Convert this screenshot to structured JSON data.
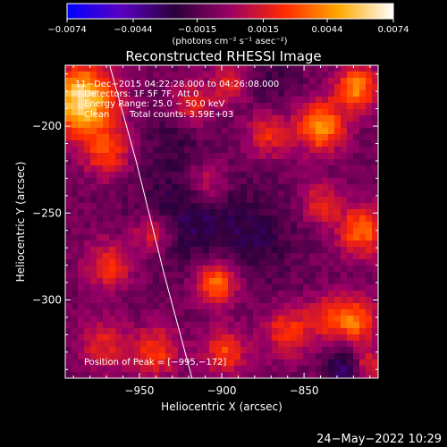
{
  "chart_data": {
    "type": "heatmap",
    "title": "Reconstructed RHESSI Image",
    "xlabel": "Heliocentric X (arcsec)",
    "ylabel": "Heliocentric Y (arcsec)",
    "xlim": [
      -995,
      -805
    ],
    "ylim": [
      -345,
      -165
    ],
    "xticks": [
      -950,
      -900,
      -850
    ],
    "xtick_labels": [
      "−950",
      "−900",
      "−850"
    ],
    "yticks": [
      -200,
      -250,
      -300
    ],
    "ytick_labels": [
      "−200",
      "−250",
      "−300"
    ],
    "colorbar": {
      "min": -0.0074,
      "max": 0.0074,
      "ticks": [
        -0.0074,
        -0.0044,
        -0.0015,
        0.0015,
        0.0044,
        0.0074
      ],
      "tick_labels": [
        "−0.0074",
        "−0.0044",
        "−0.0015",
        "0.0015",
        "0.0044",
        "0.0074"
      ],
      "unit_label": "(photons cm⁻² s⁻¹ asec⁻²)",
      "stops": [
        "#0000ff",
        "#5a00c0",
        "#2a003a",
        "#9a0066",
        "#ff2a00",
        "#ffaa00",
        "#ffffff"
      ]
    },
    "annotations": {
      "time": "11−Dec−2015 04:22:28.000 to 04:26:08.000",
      "detectors": "Detectors: 1F 5F 7F, Att 0",
      "energy": "Energy Range: 25.0 − 50.0 keV",
      "method": "Clean",
      "counts": "Total counts: 3.59E+03",
      "peak": "Position of Peak = [−995,−172]"
    },
    "limb": [
      {
        "x": -968,
        "y": -165
      },
      {
        "x": -952,
        "y": -220
      },
      {
        "x": -935,
        "y": -285
      },
      {
        "x": -918,
        "y": -345
      }
    ],
    "sources": [
      {
        "x": -985,
        "y": -185,
        "sigma": 14,
        "value": 0.0074
      },
      {
        "x": -970,
        "y": -215,
        "sigma": 10,
        "value": 0.0035
      },
      {
        "x": -968,
        "y": -280,
        "sigma": 10,
        "value": 0.0032
      },
      {
        "x": -972,
        "y": -325,
        "sigma": 10,
        "value": 0.0028
      },
      {
        "x": -942,
        "y": -262,
        "sigma": 8,
        "value": 0.003
      },
      {
        "x": -940,
        "y": -330,
        "sigma": 10,
        "value": 0.0034
      },
      {
        "x": -918,
        "y": -188,
        "sigma": 9,
        "value": 0.0028
      },
      {
        "x": -908,
        "y": -232,
        "sigma": 9,
        "value": 0.0026
      },
      {
        "x": -903,
        "y": -290,
        "sigma": 9,
        "value": 0.0048
      },
      {
        "x": -895,
        "y": -175,
        "sigma": 8,
        "value": 0.0026
      },
      {
        "x": -898,
        "y": -330,
        "sigma": 9,
        "value": 0.0036
      },
      {
        "x": -872,
        "y": -205,
        "sigma": 9,
        "value": 0.003
      },
      {
        "x": -860,
        "y": -318,
        "sigma": 10,
        "value": 0.0034
      },
      {
        "x": -840,
        "y": -200,
        "sigma": 10,
        "value": 0.0055
      },
      {
        "x": -840,
        "y": -245,
        "sigma": 8,
        "value": 0.003
      },
      {
        "x": -835,
        "y": -310,
        "sigma": 9,
        "value": 0.003
      },
      {
        "x": -818,
        "y": -178,
        "sigma": 9,
        "value": 0.005
      },
      {
        "x": -815,
        "y": -260,
        "sigma": 10,
        "value": 0.0045
      },
      {
        "x": -818,
        "y": -312,
        "sigma": 9,
        "value": 0.0042
      },
      {
        "x": -812,
        "y": -338,
        "sigma": 7,
        "value": 0.003
      }
    ],
    "negatives": [
      {
        "x": -920,
        "y": -250,
        "sigma": 22,
        "value": -0.0018
      },
      {
        "x": -880,
        "y": -265,
        "sigma": 18,
        "value": -0.0014
      },
      {
        "x": -930,
        "y": -205,
        "sigma": 12,
        "value": -0.001
      },
      {
        "x": -870,
        "y": -175,
        "sigma": 12,
        "value": -0.001
      },
      {
        "x": -825,
        "y": -340,
        "sigma": 8,
        "value": -0.003
      }
    ]
  },
  "timestamp": "24−May−2022 10:29"
}
